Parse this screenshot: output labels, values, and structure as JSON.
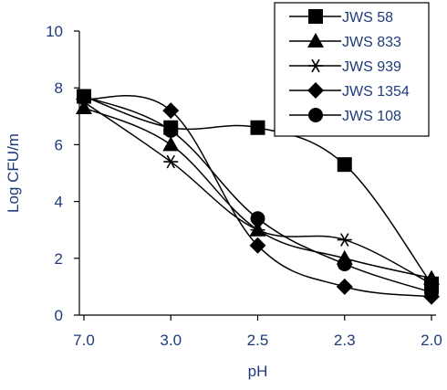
{
  "chart_data": {
    "type": "line",
    "categories": [
      "7.0",
      "3.0",
      "2.5",
      "2.3",
      "2.0"
    ],
    "xlabel": "pH",
    "ylabel": "Log CFU/m",
    "ylim": [
      0,
      10
    ],
    "yticks": [
      0,
      2,
      4,
      6,
      8,
      10
    ],
    "grid": false,
    "legend_position": "top-right",
    "line_color": "#000000",
    "text_color": "#1f3b7a",
    "series": [
      {
        "name": "JWS 58",
        "marker": "square",
        "values": [
          7.7,
          6.6,
          6.6,
          5.3,
          1.1
        ]
      },
      {
        "name": "JWS 833",
        "marker": "triangle",
        "values": [
          7.3,
          6.0,
          3.0,
          2.0,
          1.3
        ]
      },
      {
        "name": "JWS 939",
        "marker": "asterisk",
        "values": [
          7.5,
          5.4,
          3.0,
          2.65,
          1.1
        ]
      },
      {
        "name": "JWS 1354",
        "marker": "diamond",
        "values": [
          7.6,
          7.2,
          2.45,
          1.0,
          0.65
        ]
      },
      {
        "name": "JWS 108",
        "marker": "circle",
        "values": [
          7.7,
          6.5,
          3.4,
          1.8,
          0.8
        ]
      }
    ]
  }
}
